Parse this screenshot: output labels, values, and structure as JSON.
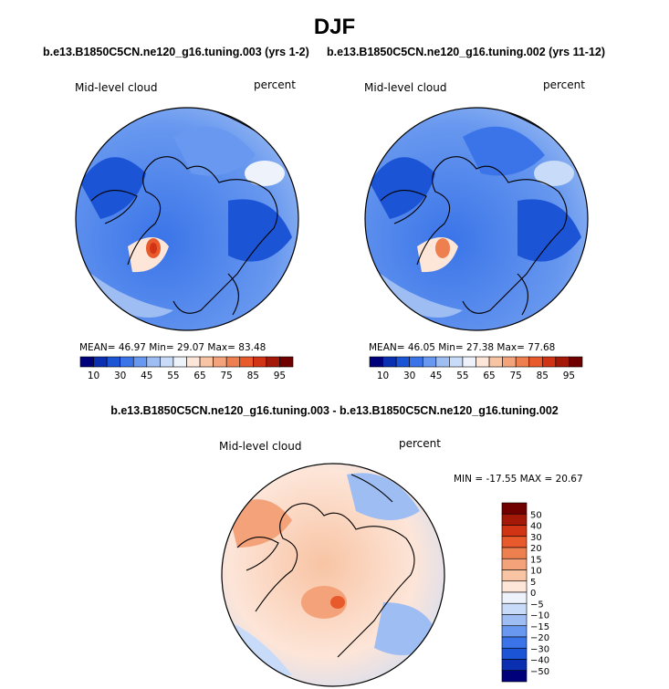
{
  "header": {
    "title": "DJF"
  },
  "panel_left": {
    "subtitle": "b.e13.B1850C5CN.ne120_g16.tuning.003 (yrs 1-2)",
    "label": "Mid-level cloud",
    "units": "percent",
    "stats": "MEAN=  46.97   Min=  29.07   Max=  83.48"
  },
  "panel_right": {
    "subtitle": "b.e13.B1850C5CN.ne120_g16.tuning.002 (yrs 11-12)",
    "label": "Mid-level cloud",
    "units": "percent",
    "stats": "MEAN=  46.05   Min=  27.38   Max=  77.68"
  },
  "panel_diff": {
    "subtitle": "b.e13.B1850C5CN.ne120_g16.tuning.003 - b.e13.B1850C5CN.ne120_g16.tuning.002",
    "label": "Mid-level cloud",
    "units": "percent",
    "stats": "MIN = -17.55  MAX =  20.67"
  },
  "colorbar_main": {
    "colors": [
      "#00007a",
      "#0a2fb0",
      "#1c54d6",
      "#3a74e8",
      "#6898ef",
      "#9dbdf3",
      "#c8dbf8",
      "#eef2fb",
      "#fde5d8",
      "#f8c4a4",
      "#f3a27a",
      "#ee8050",
      "#e85a2c",
      "#d03414",
      "#a41808",
      "#700000"
    ],
    "labels": [
      "10",
      "30",
      "45",
      "55",
      "65",
      "75",
      "85",
      "95"
    ]
  },
  "colorbar_diff": {
    "colors": [
      "#00007a",
      "#0a2fb0",
      "#1c54d6",
      "#3a74e8",
      "#6898ef",
      "#9dbdf3",
      "#c8dbf8",
      "#eef2fb",
      "#fde5d8",
      "#f8c4a4",
      "#f3a27a",
      "#ee8050",
      "#e85a2c",
      "#d03414",
      "#a41808",
      "#700000"
    ],
    "labels": [
      "50",
      "40",
      "30",
      "20",
      "15",
      "10",
      "5",
      "0",
      "−5",
      "−10",
      "−15",
      "−20",
      "−30",
      "−40",
      "−50"
    ]
  }
}
